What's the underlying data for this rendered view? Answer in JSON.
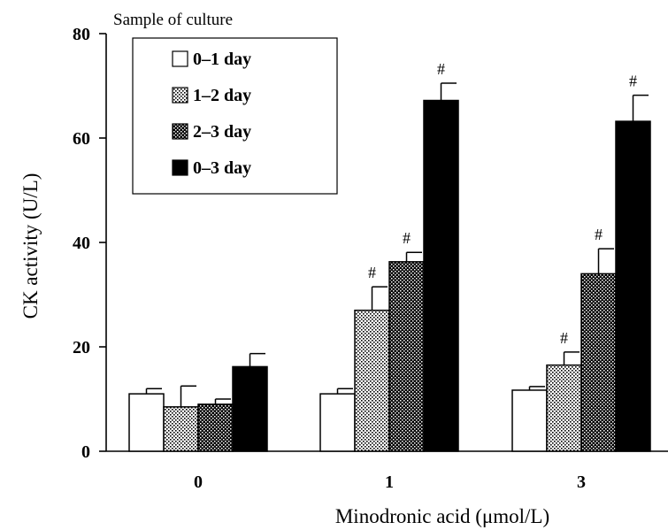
{
  "chart_data": {
    "type": "bar",
    "title": "",
    "xlabel": "Minodronic acid (μmol/L)",
    "ylabel": "CK activity (U/L)",
    "ylim": [
      0,
      80
    ],
    "yticks": [
      "0",
      "20",
      "40",
      "60",
      "80"
    ],
    "categories": [
      "0",
      "1",
      "3"
    ],
    "legend_title": "Sample of culture",
    "legend_position": "top-left",
    "grid": false,
    "series": [
      {
        "name": "0–1 day",
        "pattern": "white",
        "values": [
          11,
          11,
          11.7
        ],
        "errors": [
          1,
          1,
          0.7
        ],
        "annotations": [
          "",
          "",
          ""
        ]
      },
      {
        "name": "1–2 day",
        "pattern": "light-dots",
        "values": [
          8.5,
          27,
          16.5
        ],
        "errors": [
          4,
          4.5,
          2.5
        ],
        "annotations": [
          "",
          "#",
          "#"
        ]
      },
      {
        "name": "2–3 day",
        "pattern": "dark-dots",
        "values": [
          9,
          36.3,
          34
        ],
        "errors": [
          1,
          1.8,
          4.8
        ],
        "annotations": [
          "",
          "#",
          "#"
        ]
      },
      {
        "name": "0–3 day",
        "pattern": "black",
        "values": [
          16.2,
          67.2,
          63.2
        ],
        "errors": [
          2.5,
          3.3,
          5
        ],
        "annotations": [
          "",
          "#",
          "#"
        ]
      }
    ],
    "colors": {
      "axis": "#000000",
      "bar_stroke": "#000000",
      "fill_white": "#ffffff",
      "fill_black": "#000000"
    }
  }
}
